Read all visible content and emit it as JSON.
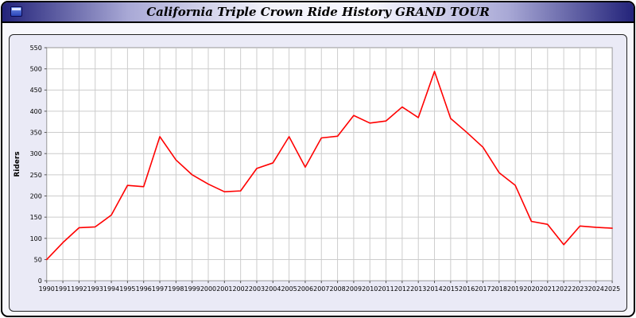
{
  "window": {
    "title": "California Triple Crown Ride History GRAND TOUR"
  },
  "chart_data": {
    "type": "line",
    "title": "California Triple Crown Ride History GRAND TOUR",
    "xlabel": "",
    "ylabel": "Riders",
    "ylim": [
      0,
      550
    ],
    "ytick_interval": 50,
    "grid": true,
    "legend": "none",
    "x": [
      1990,
      1991,
      1992,
      1993,
      1994,
      1995,
      1996,
      1997,
      1998,
      1999,
      2000,
      2001,
      2002,
      2003,
      2004,
      2005,
      2006,
      2007,
      2008,
      2009,
      2010,
      2011,
      2012,
      2013,
      2014,
      2015,
      2016,
      2017,
      2018,
      2019,
      2020,
      2021,
      2022,
      2023,
      2024,
      2025
    ],
    "series": [
      {
        "name": "Riders",
        "color": "#ff0000",
        "values": [
          50,
          90,
          125,
          127,
          155,
          225,
          222,
          340,
          285,
          250,
          228,
          210,
          212,
          265,
          278,
          340,
          268,
          337,
          341,
          390,
          372,
          377,
          410,
          385,
          494,
          383,
          350,
          315,
          255,
          225,
          140,
          133,
          85,
          129,
          126,
          124
        ]
      }
    ],
    "colors": {
      "plot_bg": "#ffffff",
      "panel_bg": "#eaeaf6",
      "grid": "#cccccc",
      "axis": "#999999",
      "tick": "#555555",
      "label": "#000000"
    }
  }
}
